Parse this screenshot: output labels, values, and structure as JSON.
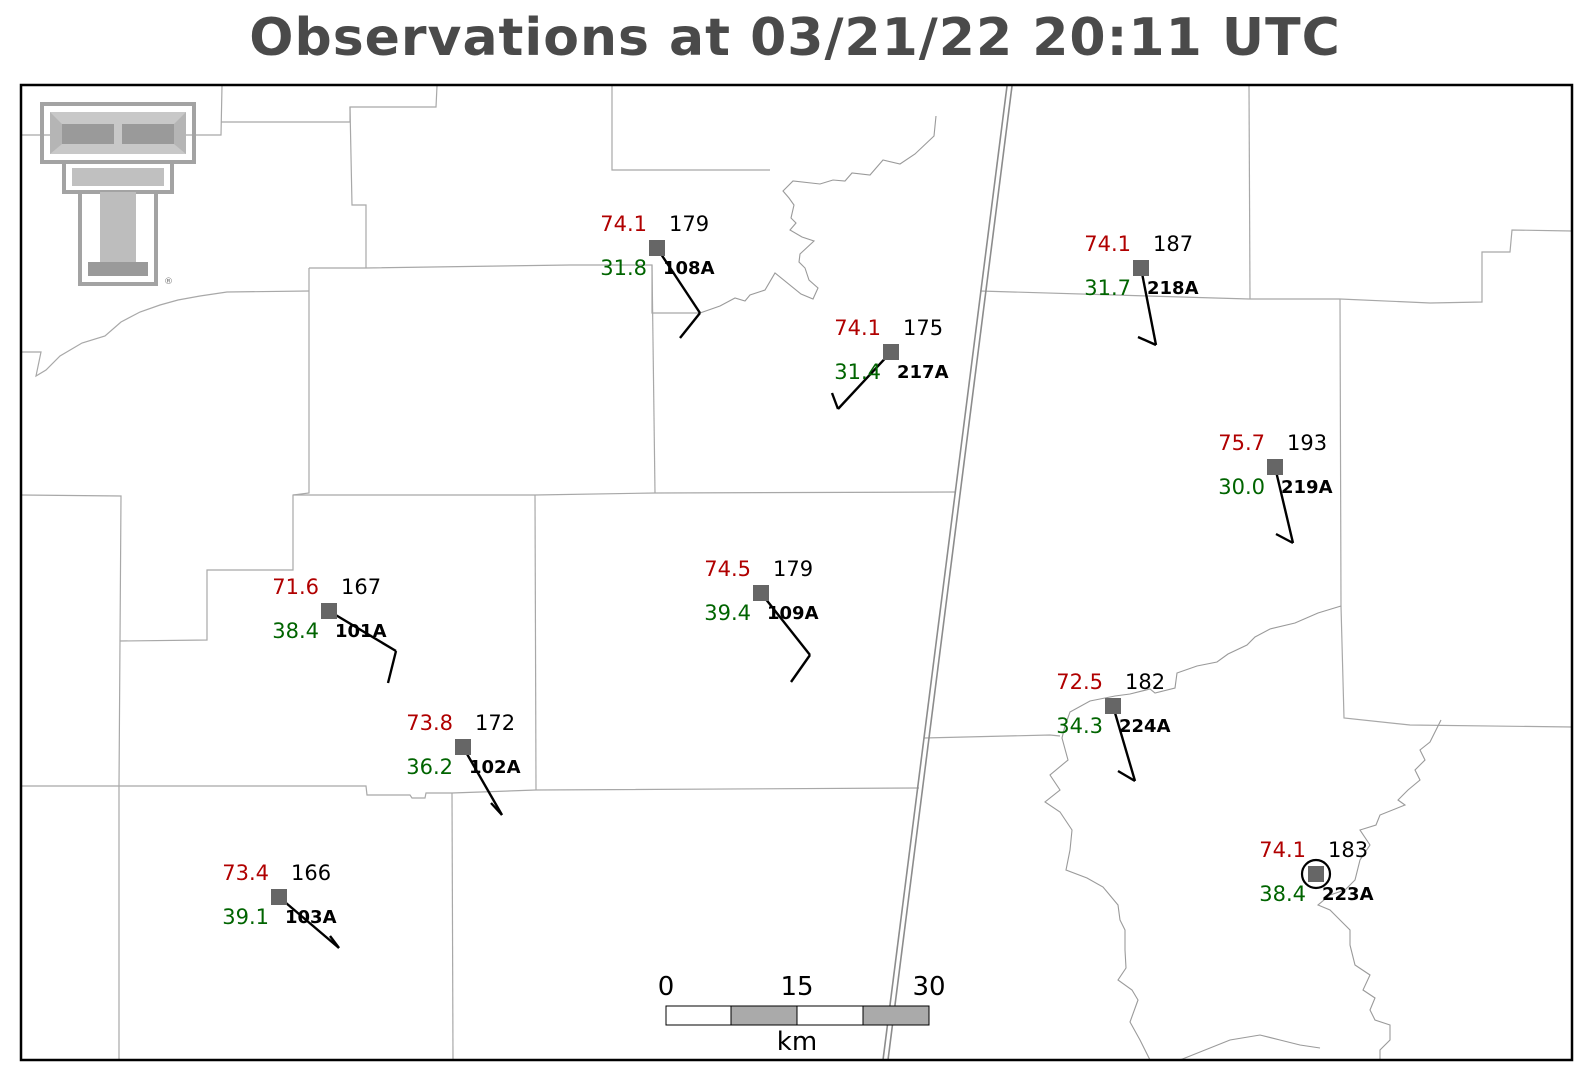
{
  "title": "Observations at 03/21/22 20:11 UTC",
  "colors": {
    "title": "#4a4a4a",
    "temperature": "#b00000",
    "dewpoint": "#006400",
    "pressure": "#000000",
    "station_marker": "#666666",
    "county_lines": "#a8a8a8",
    "logo": "#a0a0a0"
  },
  "logo": {
    "name": "texas-tech-double-t-logo",
    "mark": "®"
  },
  "stations": [
    {
      "id": "108A",
      "temp": "74.1",
      "dewpoint": "31.8",
      "pressure": "179",
      "circled": false
    },
    {
      "id": "217A",
      "temp": "74.1",
      "dewpoint": "31.4",
      "pressure": "175",
      "circled": false
    },
    {
      "id": "218A",
      "temp": "74.1",
      "dewpoint": "31.7",
      "pressure": "187",
      "circled": false
    },
    {
      "id": "219A",
      "temp": "75.7",
      "dewpoint": "30.0",
      "pressure": "193",
      "circled": false
    },
    {
      "id": "101A",
      "temp": "71.6",
      "dewpoint": "38.4",
      "pressure": "167",
      "circled": false
    },
    {
      "id": "109A",
      "temp": "74.5",
      "dewpoint": "39.4",
      "pressure": "179",
      "circled": false
    },
    {
      "id": "102A",
      "temp": "73.8",
      "dewpoint": "36.2",
      "pressure": "172",
      "circled": false
    },
    {
      "id": "224A",
      "temp": "72.5",
      "dewpoint": "34.3",
      "pressure": "182",
      "circled": false
    },
    {
      "id": "103A",
      "temp": "73.4",
      "dewpoint": "39.1",
      "pressure": "166",
      "circled": false
    },
    {
      "id": "223A",
      "temp": "74.1",
      "dewpoint": "38.4",
      "pressure": "183",
      "circled": true
    }
  ],
  "scale_bar": {
    "labels": [
      "0",
      "15",
      "30"
    ],
    "unit": "km"
  }
}
